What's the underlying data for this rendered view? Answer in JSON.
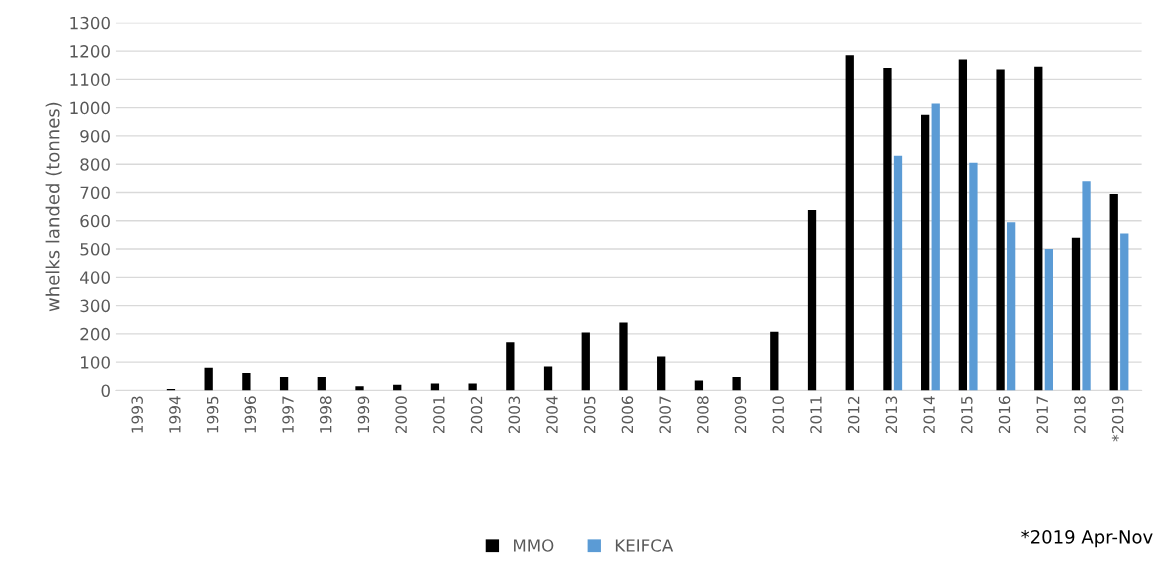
{
  "chart_data": {
    "type": "bar",
    "ylabel": "whelks landed (tonnes)",
    "categories": [
      "1993",
      "1994",
      "1995",
      "1996",
      "1997",
      "1998",
      "1999",
      "2000",
      "2001",
      "2002",
      "2003",
      "2004",
      "2005",
      "2006",
      "2007",
      "2008",
      "2009",
      "2010",
      "2011",
      "2012",
      "2013",
      "2014",
      "2015",
      "2016",
      "2017",
      "2018",
      "*2019"
    ],
    "series": [
      {
        "name": "MMO",
        "color": "#000000",
        "values": [
          0,
          5,
          80,
          62,
          48,
          48,
          15,
          20,
          25,
          25,
          170,
          85,
          205,
          240,
          120,
          35,
          48,
          208,
          638,
          1185,
          1140,
          975,
          1170,
          1135,
          1145,
          540,
          695
        ]
      },
      {
        "name": "KEIFCA",
        "color": "#5b9bd5",
        "values": [
          null,
          null,
          null,
          null,
          null,
          null,
          null,
          null,
          null,
          null,
          null,
          null,
          null,
          null,
          null,
          null,
          null,
          null,
          null,
          null,
          830,
          1015,
          805,
          595,
          500,
          740,
          555
        ]
      }
    ],
    "ylim": [
      0,
      1300
    ],
    "yticks": [
      0,
      100,
      200,
      300,
      400,
      500,
      600,
      700,
      800,
      900,
      1000,
      1100,
      1200,
      1300
    ],
    "grid": "y",
    "legend": "bottom",
    "annotations": [
      "*2019 Apr-Nov"
    ]
  }
}
